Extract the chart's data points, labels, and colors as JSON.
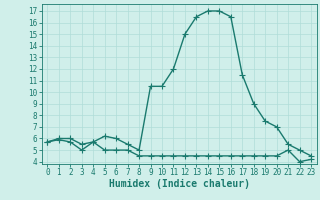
{
  "x": [
    0,
    1,
    2,
    3,
    4,
    5,
    6,
    7,
    8,
    9,
    10,
    11,
    12,
    13,
    14,
    15,
    16,
    17,
    18,
    19,
    20,
    21,
    22,
    23
  ],
  "y_upper": [
    5.7,
    6.0,
    6.0,
    5.5,
    5.7,
    6.2,
    6.0,
    5.5,
    5.0,
    10.5,
    10.5,
    12.0,
    15.0,
    16.5,
    17.0,
    17.0,
    16.5,
    11.5,
    9.0,
    7.5,
    7.0,
    5.5,
    5.0,
    4.5
  ],
  "y_lower": [
    5.7,
    5.9,
    5.7,
    5.0,
    5.7,
    5.0,
    5.0,
    5.0,
    4.5,
    4.5,
    4.5,
    4.5,
    4.5,
    4.5,
    4.5,
    4.5,
    4.5,
    4.5,
    4.5,
    4.5,
    4.5,
    5.0,
    4.0,
    4.2
  ],
  "color": "#1a7a6e",
  "bg_color": "#d0efea",
  "grid_color": "#b0ddd8",
  "xlabel": "Humidex (Indice chaleur)",
  "yticks": [
    4,
    5,
    6,
    7,
    8,
    9,
    10,
    11,
    12,
    13,
    14,
    15,
    16,
    17
  ],
  "xticks": [
    0,
    1,
    2,
    3,
    4,
    5,
    6,
    7,
    8,
    9,
    10,
    11,
    12,
    13,
    14,
    15,
    16,
    17,
    18,
    19,
    20,
    21,
    22,
    23
  ],
  "ylim": [
    3.8,
    17.6
  ],
  "xlim": [
    -0.5,
    23.5
  ],
  "line_width": 1.0,
  "marker": "+",
  "marker_size": 4,
  "marker_lw": 0.8,
  "font_size": 5.5,
  "xlabel_font_size": 7
}
